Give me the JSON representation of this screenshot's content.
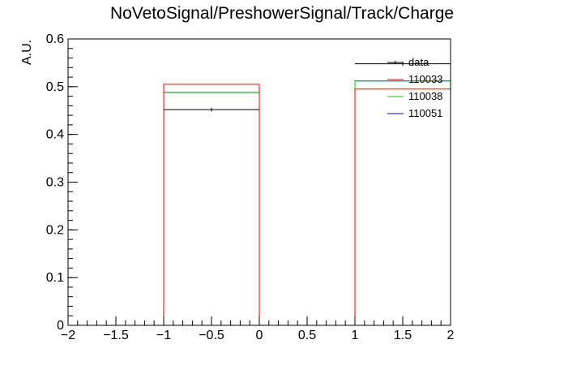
{
  "chart_data": {
    "type": "histogram",
    "title": "NoVetoSignal/PreshowerSignal/Track/Charge",
    "xlabel": "",
    "ylabel": "A.U.",
    "xlim": [
      -2,
      2
    ],
    "ylim": [
      0,
      0.6
    ],
    "x_ticks": [
      -2,
      -1.5,
      -1,
      -0.5,
      0,
      0.5,
      1,
      1.5,
      2
    ],
    "x_tick_labels": [
      "−2",
      "−1.5",
      "−1",
      "−0.5",
      "0",
      "0.5",
      "1",
      "1.5",
      "2"
    ],
    "y_ticks": [
      0,
      0.1,
      0.2,
      0.3,
      0.4,
      0.5,
      0.6
    ],
    "y_tick_labels": [
      "0",
      "0.1",
      "0.2",
      "0.3",
      "0.4",
      "0.5",
      "0.6"
    ],
    "bin_edges": [
      -2,
      -1,
      0,
      1,
      2
    ],
    "grid": false,
    "legend_position": "top-right",
    "series": [
      {
        "name": "data",
        "color": "#000000",
        "values": [
          0,
          0.452,
          0,
          0.548
        ],
        "errors": [
          0,
          0.004,
          0,
          0.004
        ],
        "style": "points"
      },
      {
        "name": "110033",
        "color": "#ff0000",
        "values": [
          0,
          0.505,
          0,
          0.495
        ],
        "style": "step"
      },
      {
        "name": "110038",
        "color": "#00cc00",
        "values": [
          0,
          0.488,
          0,
          0.512
        ],
        "style": "step"
      },
      {
        "name": "110051",
        "color": "#0000ff",
        "values": [
          0,
          0.488,
          0,
          0.512
        ],
        "style": "step"
      }
    ]
  }
}
